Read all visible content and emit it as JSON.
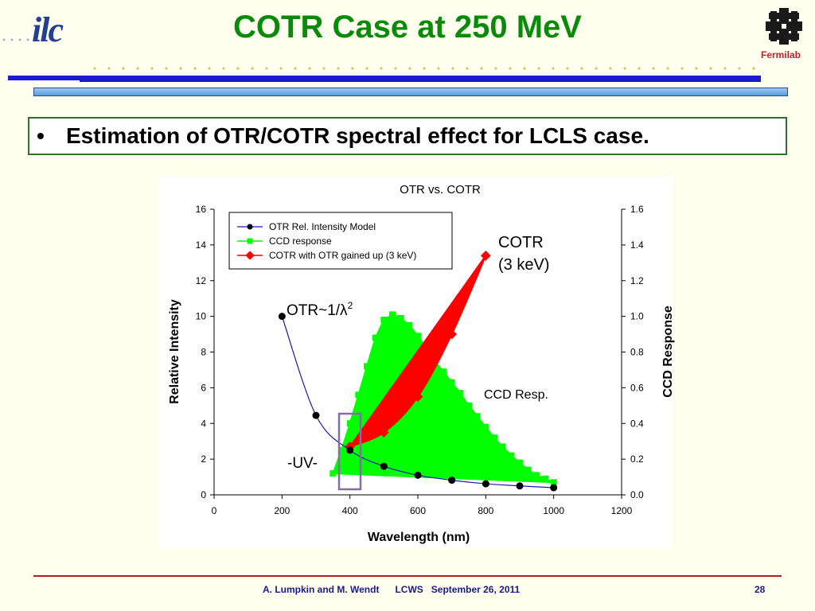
{
  "slide": {
    "title": "COTR Case at 250 MeV",
    "logo_left": "ilc",
    "logo_right_text": "Fermilab",
    "bullet_symbol": "•",
    "bullet_text": "Estimation of OTR/COTR spectral effect for LCLS case.",
    "footer": "A. Lumpkin and M. Wendt      LCWS   September 26, 2011",
    "page_number": "28"
  },
  "colors": {
    "title": "#0a8a0a",
    "otr": "#1a1ab0",
    "ccd": "#00ff00",
    "cotr": "#ff0000",
    "uv_box": "#8a6aa8"
  },
  "chart_data": {
    "type": "line",
    "title": "OTR vs. COTR",
    "xlabel": "Wavelength (nm)",
    "ylabel": "Relative Intensity",
    "y2label": "CCD Response",
    "xlim": [
      0,
      1200
    ],
    "ylim": [
      0,
      16
    ],
    "y2lim": [
      0,
      1.6
    ],
    "x_ticks": [
      "0",
      "200",
      "400",
      "600",
      "800",
      "1000",
      "1200"
    ],
    "y_ticks": [
      "0",
      "2",
      "4",
      "6",
      "8",
      "10",
      "12",
      "14",
      "16"
    ],
    "y2_ticks": [
      "0.0",
      "0.2",
      "0.4",
      "0.6",
      "0.8",
      "1.0",
      "1.2",
      "1.4",
      "1.6"
    ],
    "legend_position": "top-left",
    "series": [
      {
        "name": "OTR Rel. Intensity Model",
        "axis": "left",
        "x": [
          200,
          300,
          400,
          500,
          600,
          700,
          800,
          900,
          1000
        ],
        "y": [
          10.0,
          4.45,
          2.5,
          1.6,
          1.1,
          0.82,
          0.62,
          0.5,
          0.4
        ]
      },
      {
        "name": "CCD response",
        "axis": "right",
        "x": [
          350,
          375,
          400,
          425,
          450,
          475,
          500,
          525,
          550,
          575,
          600,
          625,
          650,
          675,
          700,
          725,
          750,
          775,
          800,
          825,
          850,
          875,
          900,
          925,
          950,
          975,
          1000
        ],
        "y": [
          0.12,
          0.25,
          0.4,
          0.56,
          0.72,
          0.88,
          0.98,
          1.01,
          0.99,
          0.95,
          0.89,
          0.82,
          0.75,
          0.69,
          0.63,
          0.57,
          0.5,
          0.44,
          0.38,
          0.32,
          0.27,
          0.22,
          0.18,
          0.14,
          0.11,
          0.09,
          0.07
        ]
      },
      {
        "name": "COTR with OTR gained up (3 keV)",
        "axis": "left",
        "x": [
          400,
          500,
          600,
          700,
          800
        ],
        "y": [
          2.7,
          3.5,
          5.5,
          9.0,
          13.4
        ]
      }
    ],
    "annotations": {
      "otr": "OTR~1/λ",
      "otr_sup": "2",
      "cotr_line1": "COTR",
      "cotr_line2": "(3 keV)",
      "ccd": "CCD Resp.",
      "uv": "-UV-"
    }
  }
}
